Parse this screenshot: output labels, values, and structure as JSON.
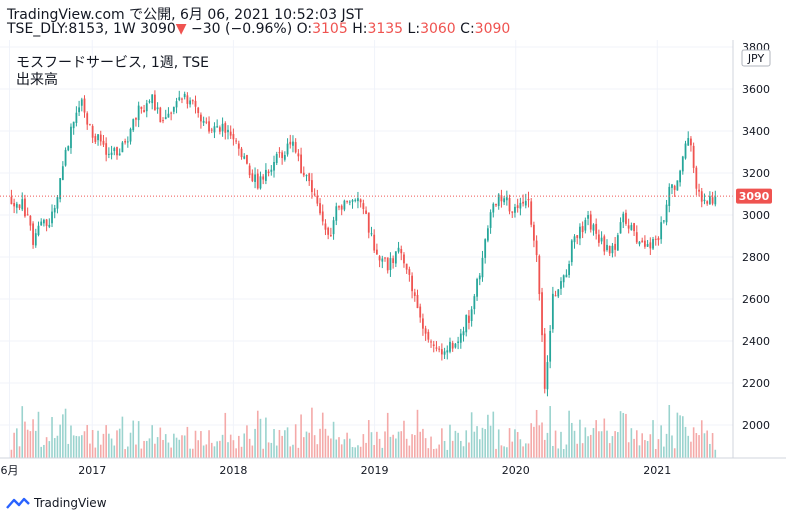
{
  "header": {
    "brand": "TradingView.com",
    "published": "で公開, 6月 06, 2021 10:52:03 JST",
    "symbol": "TSE_DLY:8153, 1W",
    "last": "3090",
    "change_arrow": "▼",
    "change": "−30 (−0.96%)",
    "o_label": "O:",
    "o_value": "3105",
    "h_label": "H:",
    "h_value": "3135",
    "l_label": "L:",
    "l_value": "3060",
    "c_label": "C:",
    "c_value": "3090"
  },
  "legend": {
    "title": "モスフードサービス, 1週, TSE",
    "volume_label": "出来高"
  },
  "footer": {
    "brand": "TradingView"
  },
  "colors": {
    "up": "#26a69a",
    "down": "#ef5350",
    "vol_up": "#9ad3ce",
    "vol_down": "#f4a9a8",
    "last_line": "#ef5350"
  },
  "chart_data": {
    "type": "candlestick",
    "interval": "1W",
    "currency": "JPY",
    "last_price_label": "3090",
    "y_ticks": [
      2000,
      2200,
      2400,
      2600,
      2800,
      3000,
      3200,
      3400,
      3600,
      3800
    ],
    "x_ticks": [
      {
        "label": "6月",
        "date": "2016-06"
      },
      {
        "label": "2017",
        "date": "2017-01"
      },
      {
        "label": "2018",
        "date": "2018-01"
      },
      {
        "label": "2019",
        "date": "2019-01"
      },
      {
        "label": "2020",
        "date": "2020-01"
      },
      {
        "label": "2021",
        "date": "2021-01"
      }
    ],
    "ylim": [
      1850,
      3800
    ],
    "grid": true,
    "price_path": [
      [
        "2016-06-06",
        3080
      ],
      [
        "2016-07-04",
        3050
      ],
      [
        "2016-08-01",
        2880
      ],
      [
        "2016-08-22",
        2980
      ],
      [
        "2016-09-12",
        2960
      ],
      [
        "2016-10-03",
        3100
      ],
      [
        "2016-11-07",
        3400
      ],
      [
        "2016-12-05",
        3520
      ],
      [
        "2017-01-09",
        3360
      ],
      [
        "2017-02-06",
        3320
      ],
      [
        "2017-03-06",
        3300
      ],
      [
        "2017-04-03",
        3360
      ],
      [
        "2017-05-01",
        3500
      ],
      [
        "2017-06-05",
        3560
      ],
      [
        "2017-07-03",
        3430
      ],
      [
        "2017-08-07",
        3520
      ],
      [
        "2017-09-04",
        3560
      ],
      [
        "2017-10-02",
        3470
      ],
      [
        "2017-11-06",
        3420
      ],
      [
        "2017-12-04",
        3400
      ],
      [
        "2018-01-08",
        3360
      ],
      [
        "2018-02-05",
        3250
      ],
      [
        "2018-03-05",
        3130
      ],
      [
        "2018-04-02",
        3220
      ],
      [
        "2018-05-07",
        3300
      ],
      [
        "2018-06-04",
        3320
      ],
      [
        "2018-07-02",
        3180
      ],
      [
        "2018-08-06",
        3060
      ],
      [
        "2018-09-03",
        2900
      ],
      [
        "2018-10-01",
        3050
      ],
      [
        "2018-11-05",
        3080
      ],
      [
        "2018-12-03",
        3030
      ],
      [
        "2019-01-07",
        2800
      ],
      [
        "2019-02-04",
        2760
      ],
      [
        "2019-03-04",
        2820
      ],
      [
        "2019-04-01",
        2700
      ],
      [
        "2019-05-06",
        2480
      ],
      [
        "2019-06-03",
        2370
      ],
      [
        "2019-07-01",
        2360
      ],
      [
        "2019-08-05",
        2400
      ],
      [
        "2019-09-02",
        2520
      ],
      [
        "2019-10-07",
        2800
      ],
      [
        "2019-11-04",
        3070
      ],
      [
        "2019-12-02",
        3060
      ],
      [
        "2020-01-06",
        3030
      ],
      [
        "2020-02-03",
        3080
      ],
      [
        "2020-02-24",
        2800
      ],
      [
        "2020-03-16",
        2200
      ],
      [
        "2020-04-06",
        2600
      ],
      [
        "2020-05-04",
        2680
      ],
      [
        "2020-06-01",
        2900
      ],
      [
        "2020-07-06",
        2980
      ],
      [
        "2020-08-03",
        2880
      ],
      [
        "2020-09-07",
        2820
      ],
      [
        "2020-10-05",
        3000
      ],
      [
        "2020-11-02",
        2900
      ],
      [
        "2020-12-07",
        2850
      ],
      [
        "2021-01-04",
        2900
      ],
      [
        "2021-02-01",
        3100
      ],
      [
        "2021-03-01",
        3200
      ],
      [
        "2021-03-22",
        3400
      ],
      [
        "2021-04-12",
        3150
      ],
      [
        "2021-05-03",
        3060
      ],
      [
        "2021-06-04",
        3090
      ]
    ]
  }
}
